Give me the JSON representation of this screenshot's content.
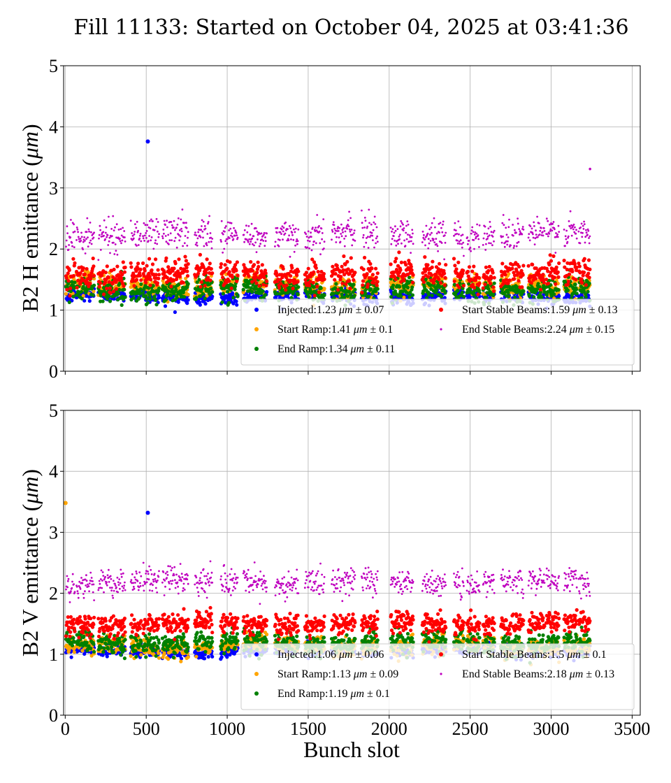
{
  "figure": {
    "title": "Fill 11133: Started on October 04, 2025 at 03:41:36"
  },
  "chart_data": [
    {
      "type": "scatter",
      "panel": "top",
      "title": "",
      "xlabel": "",
      "ylabel": "B2 H emittance (μm)",
      "ylabel_parts": {
        "prefix": "B2 H emittance (",
        "unit": "μm",
        "suffix": ")"
      },
      "xlim": [
        -10,
        3550
      ],
      "ylim": [
        0,
        5
      ],
      "xticks": [
        0,
        500,
        1000,
        1500,
        2000,
        2500,
        3000,
        3500
      ],
      "xtick_labels_shown": false,
      "yticks": [
        0,
        1,
        2,
        3,
        4,
        5
      ],
      "grid": true,
      "legend": {
        "placement": "lower-right",
        "columns": 2
      },
      "outliers": [
        {
          "series": "Injected",
          "x": 510,
          "y": 3.76
        },
        {
          "series": "End Stable Beams",
          "x": 3240,
          "y": 3.31
        }
      ],
      "series": [
        {
          "name": "Injected",
          "label": "Injected:1.23 μm ± 0.07",
          "stat_label": "Injected:1.23",
          "stat_suffix": "± 0.07",
          "mean": 1.23,
          "std": 0.07,
          "color": "#0000ff",
          "marker": "dot-large"
        },
        {
          "name": "Start Ramp",
          "label": "Start Ramp:1.41 μm ± 0.1",
          "stat_label": "Start Ramp:1.41",
          "stat_suffix": "± 0.1",
          "mean": 1.41,
          "std": 0.1,
          "color": "#ffa500",
          "marker": "dot-large"
        },
        {
          "name": "End Ramp",
          "label": "End Ramp:1.34 μm ± 0.11",
          "stat_label": "End Ramp:1.34",
          "stat_suffix": "± 0.11",
          "mean": 1.34,
          "std": 0.11,
          "color": "#008000",
          "marker": "dot-large"
        },
        {
          "name": "Start Stable Beams",
          "label": "Start Stable Beams:1.59 μm ± 0.13",
          "stat_label": "Start Stable Beams:1.59",
          "stat_suffix": "± 0.13",
          "mean": 1.59,
          "std": 0.13,
          "color": "#ff0000",
          "marker": "dot-large"
        },
        {
          "name": "End Stable Beams",
          "label": "End Stable Beams:2.24 μm ± 0.15",
          "stat_label": "End Stable Beams:2.24",
          "stat_suffix": "± 0.15",
          "mean": 2.24,
          "std": 0.15,
          "color": "#bf00bf",
          "marker": "dot-small"
        }
      ]
    },
    {
      "type": "scatter",
      "panel": "bottom",
      "title": "",
      "xlabel": "Bunch slot",
      "ylabel": "B2 V emittance (μm)",
      "ylabel_parts": {
        "prefix": "B2 V emittance (",
        "unit": "μm",
        "suffix": ")"
      },
      "xlim": [
        -10,
        3550
      ],
      "ylim": [
        0,
        5
      ],
      "xticks": [
        0,
        500,
        1000,
        1500,
        2000,
        2500,
        3000,
        3500
      ],
      "xtick_labels_shown": true,
      "yticks": [
        0,
        1,
        2,
        3,
        4,
        5
      ],
      "grid": true,
      "legend": {
        "placement": "lower-right",
        "columns": 2
      },
      "outliers": [
        {
          "series": "Injected",
          "x": 510,
          "y": 3.32
        },
        {
          "series": "Start Ramp",
          "x": 2,
          "y": 3.48
        }
      ],
      "series": [
        {
          "name": "Injected",
          "label": "Injected:1.06 μm ± 0.06",
          "stat_label": "Injected:1.06",
          "stat_suffix": "± 0.06",
          "mean": 1.06,
          "std": 0.06,
          "color": "#0000ff",
          "marker": "dot-large"
        },
        {
          "name": "Start Ramp",
          "label": "Start Ramp:1.13 μm ± 0.09",
          "stat_label": "Start Ramp:1.13",
          "stat_suffix": "± 0.09",
          "mean": 1.13,
          "std": 0.09,
          "color": "#ffa500",
          "marker": "dot-large"
        },
        {
          "name": "End Ramp",
          "label": "End Ramp:1.19 μm ± 0.1",
          "stat_label": "End Ramp:1.19",
          "stat_suffix": "± 0.1",
          "mean": 1.19,
          "std": 0.1,
          "color": "#008000",
          "marker": "dot-large"
        },
        {
          "name": "Start Stable Beams",
          "label": "Start Stable Beams:1.5 μm ± 0.1",
          "stat_label": "Start Stable Beams:1.5",
          "stat_suffix": "± 0.1",
          "mean": 1.5,
          "std": 0.1,
          "color": "#ff0000",
          "marker": "dot-large"
        },
        {
          "name": "End Stable Beams",
          "label": "End Stable Beams:2.18 μm ± 0.13",
          "stat_label": "End Stable Beams:2.18",
          "stat_suffix": "± 0.13",
          "mean": 2.18,
          "std": 0.13,
          "color": "#bf00bf",
          "marker": "dot-small"
        }
      ]
    }
  ],
  "bunch_trains": [
    [
      5,
      60
    ],
    [
      70,
      180
    ],
    [
      205,
      370
    ],
    [
      405,
      470
    ],
    [
      480,
      580
    ],
    [
      600,
      760
    ],
    [
      800,
      910
    ],
    [
      960,
      1065
    ],
    [
      1100,
      1245
    ],
    [
      1295,
      1440
    ],
    [
      1480,
      1600
    ],
    [
      1645,
      1790
    ],
    [
      1830,
      1930
    ],
    [
      2010,
      2150
    ],
    [
      2205,
      2350
    ],
    [
      2400,
      2460
    ],
    [
      2480,
      2560
    ],
    [
      2580,
      2650
    ],
    [
      2690,
      2750
    ],
    [
      2760,
      2830
    ],
    [
      2860,
      2960
    ],
    [
      2970,
      3050
    ],
    [
      3080,
      3160
    ],
    [
      3170,
      3240
    ]
  ]
}
